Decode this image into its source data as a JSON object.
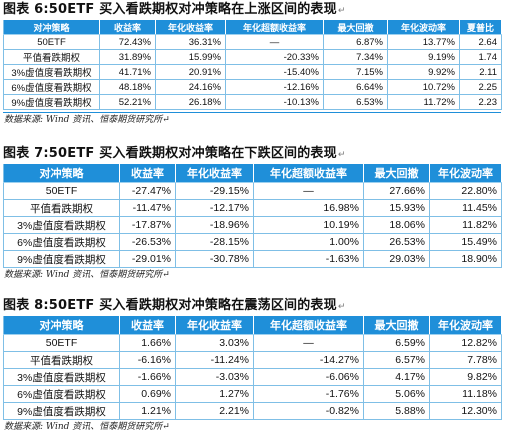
{
  "tables": [
    {
      "title": "图表 6:50ETF 买入看跌期权对冲策略在上涨区间的表现",
      "title_mark": "↵",
      "headers": [
        "对冲策略",
        "收益率",
        "年化收益率",
        "年化超额收益率",
        "最大回撤",
        "年化波动率",
        "夏普比"
      ],
      "rows": [
        [
          "50ETF",
          "72.43%",
          "36.31%",
          "—",
          "6.87%",
          "13.77%",
          "2.64"
        ],
        [
          "平值看跌期权",
          "31.89%",
          "15.99%",
          "-20.33%",
          "7.34%",
          "9.19%",
          "1.74"
        ],
        [
          "3%虚值度看跌期权",
          "41.71%",
          "20.91%",
          "-15.40%",
          "7.15%",
          "9.92%",
          "2.11"
        ],
        [
          "6%虚值度看跌期权",
          "48.18%",
          "24.16%",
          "-12.16%",
          "6.64%",
          "10.72%",
          "2.25"
        ],
        [
          "9%虚值度看跌期权",
          "52.21%",
          "26.18%",
          "-10.13%",
          "6.53%",
          "11.72%",
          "2.23"
        ]
      ],
      "source": "数据来源: Wind 资讯、恒泰期货研究所",
      "source_mark": "↵"
    },
    {
      "title": "图表 7:50ETF 买入看跌期权对冲策略在下跌区间的表现",
      "title_mark": "↵",
      "headers": [
        "对冲策略",
        "收益率",
        "年化收益率",
        "年化超额收益率",
        "最大回撤",
        "年化波动率"
      ],
      "rows": [
        [
          "50ETF",
          "-27.47%",
          "-29.15%",
          "—",
          "27.66%",
          "22.80%"
        ],
        [
          "平值看跌期权",
          "-11.47%",
          "-12.17%",
          "16.98%",
          "15.93%",
          "11.45%"
        ],
        [
          "3%虚值度看跌期权",
          "-17.87%",
          "-18.96%",
          "10.19%",
          "18.06%",
          "11.82%"
        ],
        [
          "6%虚值度看跌期权",
          "-26.53%",
          "-28.15%",
          "1.00%",
          "26.53%",
          "15.49%"
        ],
        [
          "9%虚值度看跌期权",
          "-29.01%",
          "-30.78%",
          "-1.63%",
          "29.03%",
          "18.90%"
        ]
      ],
      "source": "数据来源: Wind 资讯、恒泰期货研究所",
      "source_mark": "↵"
    },
    {
      "title": "图表 8:50ETF 买入看跌期权对冲策略在震荡区间的表现",
      "title_mark": "↵",
      "headers": [
        "对冲策略",
        "收益率",
        "年化收益率",
        "年化超额收益率",
        "最大回撤",
        "年化波动率"
      ],
      "rows": [
        [
          "50ETF",
          "1.66%",
          "3.03%",
          "—",
          "6.59%",
          "12.82%"
        ],
        [
          "平值看跌期权",
          "-6.16%",
          "-11.24%",
          "-14.27%",
          "6.57%",
          "7.78%"
        ],
        [
          "3%虚值度看跌期权",
          "-1.66%",
          "-3.03%",
          "-6.06%",
          "4.17%",
          "9.82%"
        ],
        [
          "6%虚值度看跌期权",
          "0.69%",
          "1.27%",
          "-1.76%",
          "5.06%",
          "11.18%"
        ],
        [
          "9%虚值度看跌期权",
          "1.21%",
          "2.21%",
          "-0.82%",
          "5.88%",
          "12.30%"
        ]
      ],
      "source": "数据来源: Wind 资讯、恒泰期货研究所",
      "source_mark": "↵"
    }
  ]
}
